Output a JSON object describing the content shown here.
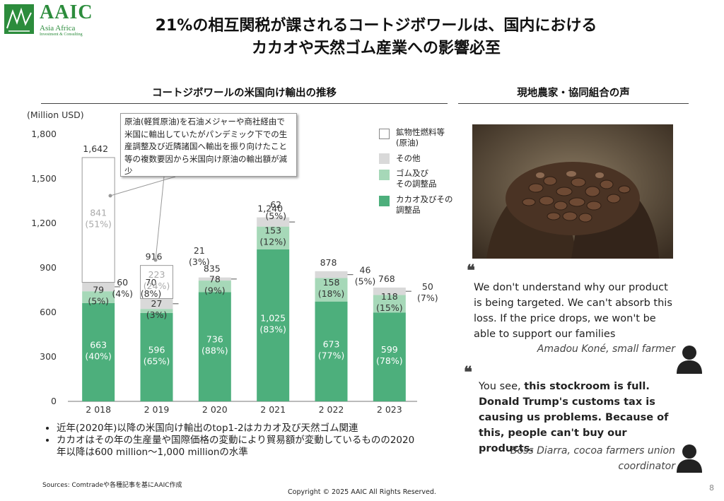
{
  "logo": {
    "name": "AAIC",
    "sub": "Asia Africa",
    "sub2": "Investment & Consulting"
  },
  "title": {
    "line1": "21%の相互関税が課されるコートジボワールは、国内における",
    "line2": "カカオや天然ゴム産業への影響必至"
  },
  "left_section_title": "コートジボワールの米国向け輸出の推移",
  "right_section_title": "現地農家・協同組合の声",
  "callout": "原油(軽質原油)を石油メジャーや商社経由で米国に輸出していたがパンデミック下での生産調整及び近隣諸国へ輸出を振り向けたこと等の複数要因から米国向け原油の輸出額が減少",
  "chart_data": {
    "type": "bar",
    "stacked": true,
    "unit_label": "(Million USD)",
    "categories": [
      "2 018",
      "2 019",
      "2 020",
      "2 021",
      "2 022",
      "2 023"
    ],
    "ylim": [
      0,
      1800
    ],
    "yticks": [
      "0",
      "300",
      "600",
      "900",
      "1,200",
      "1,500",
      "1,800"
    ],
    "totals": [
      "1,642",
      "916",
      "835",
      "1,240",
      "878",
      "768"
    ],
    "series": [
      {
        "name": "カカオ及びその調整品",
        "color": "#4daf7c",
        "values": [
          663,
          596,
          736,
          1025,
          673,
          599
        ],
        "labels": [
          "663\n(40%)",
          "596\n(65%)",
          "736\n(88%)",
          "1,025\n(83%)",
          "673\n(77%)",
          "599\n(78%)"
        ]
      },
      {
        "name": "ゴム及びその調整品",
        "color": "#a6d8b8",
        "values": [
          79,
          27,
          78,
          153,
          158,
          118
        ],
        "labels": [
          "79\n(5%)",
          "27\n(3%)",
          "78\n(9%)",
          "153\n(12%)",
          "158\n(18%)",
          "118\n(15%)"
        ]
      },
      {
        "name": "その他",
        "color": "#d9d9d9",
        "values": [
          60,
          70,
          21,
          62,
          46,
          50
        ],
        "labels": [
          "60\n(4%)",
          "70\n(8%)",
          "21\n(3%)",
          "62\n(5%)",
          "46\n(5%)",
          "50\n(7%)"
        ]
      },
      {
        "name": "鉱物性燃料等(原油)",
        "color": "#ffffff",
        "values": [
          841,
          223,
          0,
          0,
          0,
          0
        ],
        "labels": [
          "841\n(51%)",
          "223\n(24%)",
          "",
          "",
          "",
          ""
        ]
      }
    ]
  },
  "legend": [
    {
      "label": "鉱物性燃料等\n(原油)",
      "fill": "#ffffff"
    },
    {
      "label": "その他",
      "fill": "#d9d9d9"
    },
    {
      "label": "ゴム及び\nその調整品",
      "fill": "#a6d8b8"
    },
    {
      "label": "カカオ及びその\n調整品",
      "fill": "#4daf7c"
    }
  ],
  "bullets": [
    "近年(2020年)以降の米国向け輸出のtop1-2はカカオ及び天然ゴム関連",
    "カカオはその年の生産量や国際価格の変動により貿易額が変動しているものの2020年以降は600 million～1,000 millionの水準"
  ],
  "quotes": [
    {
      "mark": "❝",
      "text": "We don't understand why our product is being targeted. We can't absorb this loss. If the price drops, we won't be able to support our families",
      "author": "Amadou Koné, small farmer"
    },
    {
      "mark": "❝",
      "text_plain1": "You see, ",
      "text_bold": "this stockroom is full. Donald Trump's customs tax is causing us problems. Because of this, people can't buy our products.",
      "author": "Boss Diarra, cocoa farmers union coordinator"
    }
  ],
  "sources": "Sources: Comtradeや各種記事を基にAAIC作成",
  "copyright": "Copyright © 2025 AAIC All Rights Reserved.",
  "page_number": "8"
}
